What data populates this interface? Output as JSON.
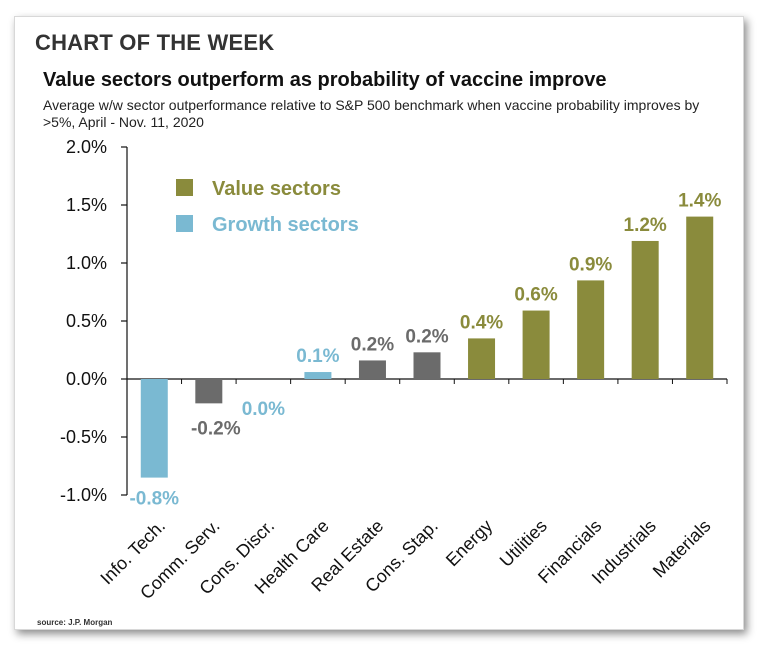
{
  "header": {
    "kicker": "CHART OF THE WEEK",
    "source": "source: J.P. Morgan"
  },
  "colors": {
    "value": "#8a8b3c",
    "growth": "#7ab9d2",
    "neutral": "#6b6b6b"
  },
  "chart_data": {
    "type": "bar",
    "title": "Value sectors outperform as probability of vaccine improve",
    "subtitle": "Average w/w sector outperformance relative to S&P 500 benchmark when vaccine probability improves by >5%, April - Nov. 11, 2020",
    "xlabel": "",
    "ylabel": "",
    "ylim": [
      -1.0,
      2.0
    ],
    "yticks": [
      "2.0%",
      "1.5%",
      "1.0%",
      "0.5%",
      "0.0%",
      "-0.5%",
      "-1.0%"
    ],
    "ytick_values": [
      2.0,
      1.5,
      1.0,
      0.5,
      0.0,
      -0.5,
      -1.0
    ],
    "categories": [
      "Info. Tech.",
      "Comm. Serv.",
      "Cons. Discr.",
      "Health Care",
      "Real Estate",
      "Cons. Stap.",
      "Energy",
      "Utilities",
      "Financials",
      "Industrials",
      "Materials"
    ],
    "values": [
      -0.85,
      -0.21,
      0.0,
      0.06,
      0.16,
      0.23,
      0.35,
      0.59,
      0.85,
      1.19,
      1.4
    ],
    "labels": [
      "-0.8%",
      "-0.2%",
      "0.0%",
      "0.1%",
      "0.2%",
      "0.2%",
      "0.4%",
      "0.6%",
      "0.9%",
      "1.2%",
      "1.4%"
    ],
    "groups": [
      "growth",
      "neutral",
      "growth",
      "growth",
      "neutral",
      "neutral",
      "value",
      "value",
      "value",
      "value",
      "value"
    ],
    "legend": [
      {
        "name": "Value sectors",
        "group": "value"
      },
      {
        "name": "Growth sectors",
        "group": "growth"
      }
    ],
    "legend_position": "top-left",
    "grid": false
  }
}
